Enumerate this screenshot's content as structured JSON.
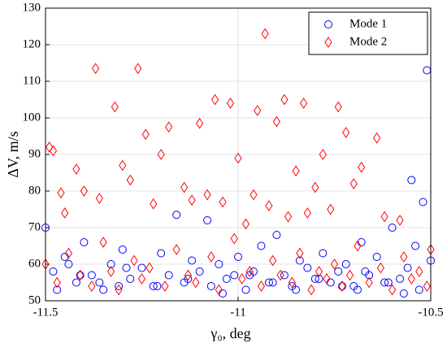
{
  "chart_data": {
    "type": "scatter",
    "xlabel": "γ₀, deg",
    "ylabel": "ΔV, m/s",
    "xlim": [
      -11.5,
      -10.5
    ],
    "xticks": [
      -11.5,
      -11,
      -10.5
    ],
    "ylim": [
      50,
      130
    ],
    "yticks": [
      50,
      60,
      70,
      80,
      90,
      100,
      110,
      120,
      130
    ],
    "grid": true,
    "legend": "upper right",
    "series": [
      {
        "name": "Mode 1",
        "color": "#0000ff",
        "marker": "circle",
        "x": [
          -11.5,
          -11.48,
          -11.45,
          -11.42,
          -11.4,
          -11.38,
          -11.35,
          -11.33,
          -11.3,
          -11.28,
          -11.25,
          -11.22,
          -11.2,
          -11.18,
          -11.16,
          -11.14,
          -11.12,
          -11.1,
          -11.08,
          -11.07,
          -11.05,
          -11.03,
          -11.0,
          -10.98,
          -10.96,
          -10.94,
          -10.92,
          -10.9,
          -10.88,
          -10.86,
          -10.84,
          -10.82,
          -10.8,
          -10.78,
          -10.76,
          -10.74,
          -10.72,
          -10.7,
          -10.68,
          -10.66,
          -10.64,
          -10.62,
          -10.6,
          -10.58,
          -10.56,
          -10.55,
          -10.53,
          -10.52,
          -10.51,
          -10.5,
          -11.47,
          -11.41,
          -11.36,
          -11.29,
          -11.21,
          -11.13,
          -11.04,
          -10.97,
          -10.91,
          -10.85,
          -10.79,
          -10.73,
          -10.67,
          -10.61,
          -10.57,
          -10.54,
          -11.44,
          -11.31,
          -11.01,
          -10.69
        ],
        "y": [
          70,
          58,
          62,
          55,
          66,
          57,
          53,
          60,
          64,
          56,
          59,
          54,
          63,
          57,
          73.5,
          55,
          61,
          58,
          72,
          54,
          60,
          56,
          62,
          53,
          58,
          65,
          55,
          68,
          57,
          54,
          61,
          59,
          56,
          63,
          55,
          58,
          60,
          54,
          66,
          57,
          62,
          55,
          70,
          56,
          59,
          83,
          53,
          77,
          113,
          61,
          53,
          57,
          55,
          59,
          54,
          56,
          52,
          57,
          55,
          53,
          56,
          54,
          58,
          55,
          52,
          65,
          60,
          54,
          57,
          53
        ]
      },
      {
        "name": "Mode 2",
        "color": "#ff0000",
        "marker": "diamond",
        "x": [
          -10.93,
          -11.37,
          -11.26,
          -11.32,
          -11.02,
          -11.06,
          -10.88,
          -10.83,
          -10.74,
          -11.18,
          -11.1,
          -10.95,
          -10.9,
          -10.72,
          -10.64,
          -11.49,
          -11.48,
          -11.2,
          -11.24,
          -11.0,
          -11.42,
          -11.3,
          -10.85,
          -10.78,
          -10.68,
          -11.46,
          -11.4,
          -11.36,
          -11.28,
          -11.22,
          -11.14,
          -11.08,
          -11.04,
          -10.98,
          -10.92,
          -10.87,
          -10.8,
          -10.76,
          -10.7,
          -10.62,
          -10.58,
          -11.45,
          -11.12,
          -10.96,
          -10.82,
          -11.5,
          -11.47,
          -11.44,
          -11.41,
          -11.38,
          -11.35,
          -11.33,
          -11.31,
          -11.27,
          -11.25,
          -11.23,
          -11.19,
          -11.16,
          -11.13,
          -11.11,
          -11.07,
          -11.05,
          -11.01,
          -10.99,
          -10.97,
          -10.94,
          -10.91,
          -10.89,
          -10.86,
          -10.84,
          -10.81,
          -10.79,
          -10.77,
          -10.75,
          -10.73,
          -10.71,
          -10.69,
          -10.66,
          -10.63,
          -10.6,
          -10.57,
          -10.55,
          -10.53,
          -10.51,
          -10.5
        ],
        "y": [
          123,
          113.5,
          113.5,
          103,
          104,
          105,
          105,
          104,
          103,
          97.5,
          98.5,
          102,
          99,
          96,
          94.5,
          92,
          91,
          90,
          95.5,
          89,
          86,
          87,
          85.5,
          90,
          86.5,
          79.5,
          80,
          78,
          83,
          76.5,
          81,
          79,
          77,
          71,
          76,
          73,
          81,
          75,
          82,
          73,
          72,
          74,
          77.5,
          79,
          74,
          60,
          55,
          63,
          57,
          54,
          66,
          58,
          53,
          61,
          56,
          59,
          54,
          64,
          57,
          55,
          62,
          53,
          67,
          56,
          58,
          54,
          61,
          57,
          55,
          63,
          53,
          58,
          56,
          60,
          54,
          57,
          65,
          55,
          59,
          53,
          62,
          56,
          58,
          54,
          64
        ]
      }
    ]
  }
}
